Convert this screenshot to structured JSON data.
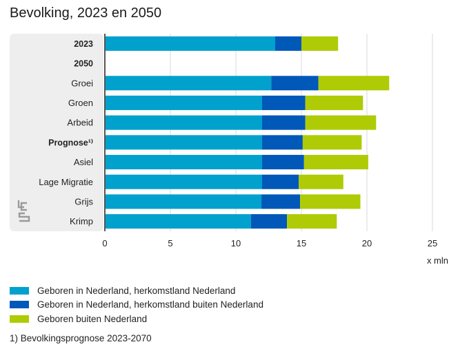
{
  "title": "Bevolking, 2023 en 2050",
  "chart_data": {
    "type": "bar",
    "orientation": "horizontal",
    "stacked": true,
    "categories": [
      "2023",
      "2050",
      "Groei",
      "Groen",
      "Arbeid",
      "Prognose¹⁾",
      "Asiel",
      "Lage Migratie",
      "Grijs",
      "Krimp"
    ],
    "bold_categories": [
      "2023",
      "2050",
      "Prognose¹⁾"
    ],
    "series": [
      {
        "name": "Geboren in Nederland, herkomstland Nederland",
        "color": "#00a1cd",
        "values": [
          13.0,
          null,
          12.7,
          12.0,
          12.0,
          12.0,
          12.0,
          12.0,
          11.95,
          11.15
        ]
      },
      {
        "name": "Geboren in Nederland, herkomstland buiten Nederland",
        "color": "#0058b8",
        "values": [
          2.0,
          null,
          3.6,
          3.3,
          3.3,
          3.1,
          3.2,
          2.8,
          2.95,
          2.75
        ]
      },
      {
        "name": "Geboren buiten Nederland",
        "color": "#afcb05",
        "values": [
          2.8,
          null,
          5.4,
          4.4,
          5.4,
          4.5,
          4.9,
          3.4,
          4.6,
          3.8
        ]
      }
    ],
    "x_ticks": [
      "0",
      "5",
      "10",
      "15",
      "20",
      "25"
    ],
    "xlim": [
      0,
      25
    ],
    "unit_label": "x mln",
    "grid": true,
    "legend_position": "bottom-left"
  },
  "footnote": "1) Bevolkingsprognose 2023-2070",
  "logo_text": "cbs"
}
